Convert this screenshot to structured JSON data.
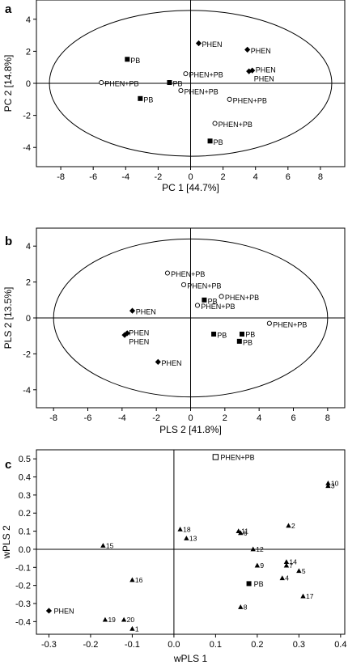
{
  "chart_data": [
    {
      "panel": "a",
      "type": "scatter",
      "xlabel": "PC 1 [44.7%]",
      "ylabel": "PC 2 [14.8%]",
      "xlim": [
        -9.5,
        9.5
      ],
      "ylim": [
        -5.2,
        5.2
      ],
      "xticks": [
        -8,
        -6,
        -4,
        -2,
        0,
        2,
        4,
        6,
        8
      ],
      "yticks": [
        -4,
        -2,
        0,
        2,
        4
      ],
      "ellipse": {
        "cx": 0,
        "cy": 0,
        "rx": 8.7,
        "ry": 4.55
      },
      "points": [
        {
          "x": 0.5,
          "y": 2.5,
          "marker": "diamond",
          "label": "PHEN"
        },
        {
          "x": 3.5,
          "y": 2.1,
          "marker": "diamond",
          "label": "PHEN"
        },
        {
          "x": 3.6,
          "y": 0.75,
          "marker": "diamond",
          "label": "PHEN"
        },
        {
          "x": 3.8,
          "y": 0.8,
          "marker": "diamond",
          "label": "PHEN"
        },
        {
          "x": -3.9,
          "y": 1.5,
          "marker": "square",
          "label": "PB"
        },
        {
          "x": -1.3,
          "y": 0.05,
          "marker": "square",
          "label": "PB"
        },
        {
          "x": -3.1,
          "y": -0.95,
          "marker": "square",
          "label": "PB"
        },
        {
          "x": 1.2,
          "y": -3.6,
          "marker": "square",
          "label": "PB"
        },
        {
          "x": -5.5,
          "y": 0.05,
          "marker": "circle",
          "label": "PHEN+PB"
        },
        {
          "x": -0.3,
          "y": 0.6,
          "marker": "circle",
          "label": "PHEN+PB"
        },
        {
          "x": -0.6,
          "y": -0.45,
          "marker": "circle",
          "label": "PHEN+PB"
        },
        {
          "x": 2.4,
          "y": -1.0,
          "marker": "circle",
          "label": "PHEN+PB"
        },
        {
          "x": 1.5,
          "y": -2.5,
          "marker": "circle",
          "label": "PHEN+PB"
        }
      ],
      "labels": [
        {
          "label": "PHEN",
          "x": 0.7,
          "y": 2.45
        },
        {
          "label": "PHEN",
          "x": 3.7,
          "y": 2.05
        },
        {
          "label": "PHEN",
          "x": 4.0,
          "y": 0.85
        },
        {
          "label": "PHEN",
          "x": 3.9,
          "y": 0.3
        },
        {
          "label": "PB",
          "x": -3.7,
          "y": 1.45
        },
        {
          "label": "PB",
          "x": -1.1,
          "y": 0.0
        },
        {
          "label": "PB",
          "x": -2.9,
          "y": -1.0
        },
        {
          "label": "PB",
          "x": 1.4,
          "y": -3.65
        },
        {
          "label": "PHEN+PB",
          "x": -5.3,
          "y": 0.0
        },
        {
          "label": "PHEN+PB",
          "x": -0.1,
          "y": 0.55
        },
        {
          "label": "PHEN+PB",
          "x": -0.4,
          "y": -0.5
        },
        {
          "label": "PHEN+PB",
          "x": 2.6,
          "y": -1.05
        },
        {
          "label": "PHEN+PB",
          "x": 1.7,
          "y": -2.55
        }
      ]
    },
    {
      "panel": "b",
      "type": "scatter",
      "xlabel": "PLS 2 [41.8%]",
      "ylabel": "PLS 2 [13.5%]",
      "xlim": [
        -9,
        9
      ],
      "ylim": [
        -5,
        5
      ],
      "xticks": [
        -8,
        -6,
        -4,
        -2,
        0,
        2,
        4,
        6,
        8
      ],
      "yticks": [
        -4,
        -2,
        0,
        2,
        4
      ],
      "ellipse": {
        "cx": 0,
        "cy": 0,
        "rx": 8.0,
        "ry": 4.4
      },
      "points": [
        {
          "x": -3.4,
          "y": 0.4,
          "marker": "diamond",
          "label": "PHEN"
        },
        {
          "x": -3.7,
          "y": -0.85,
          "marker": "diamond",
          "label": "PHEN"
        },
        {
          "x": -3.85,
          "y": -0.95,
          "marker": "diamond",
          "label": "PHEN"
        },
        {
          "x": -1.9,
          "y": -2.45,
          "marker": "diamond",
          "label": "PHEN"
        },
        {
          "x": 0.8,
          "y": 1.0,
          "marker": "square",
          "label": "PB"
        },
        {
          "x": 1.35,
          "y": -0.9,
          "marker": "square",
          "label": "PB"
        },
        {
          "x": 3.0,
          "y": -0.9,
          "marker": "square",
          "label": "PB"
        },
        {
          "x": 2.85,
          "y": -1.3,
          "marker": "square",
          "label": "PB"
        },
        {
          "x": -1.35,
          "y": 2.5,
          "marker": "circle",
          "label": "PHEN+PB"
        },
        {
          "x": -0.4,
          "y": 1.85,
          "marker": "circle",
          "label": "PHEN+PB"
        },
        {
          "x": 1.8,
          "y": 1.2,
          "marker": "circle",
          "label": "PHEN+PB"
        },
        {
          "x": 0.4,
          "y": 0.7,
          "marker": "circle",
          "label": "PHEN+PB"
        },
        {
          "x": 4.6,
          "y": -0.3,
          "marker": "circle",
          "label": "PHEN+PB"
        }
      ],
      "labels": [
        {
          "label": "PHEN",
          "x": -3.2,
          "y": 0.35
        },
        {
          "label": "PHEN",
          "x": -3.6,
          "y": -0.8
        },
        {
          "label": "PHEN",
          "x": -3.6,
          "y": -1.3
        },
        {
          "label": "PHEN",
          "x": -1.7,
          "y": -2.5
        },
        {
          "label": "PB",
          "x": 1.0,
          "y": 0.95
        },
        {
          "label": "PB",
          "x": 1.55,
          "y": -0.95
        },
        {
          "label": "PB",
          "x": 3.2,
          "y": -0.9
        },
        {
          "label": "PB",
          "x": 3.05,
          "y": -1.35
        },
        {
          "label": "PHEN+PB",
          "x": -1.15,
          "y": 2.45
        },
        {
          "label": "PHEN+PB",
          "x": -0.2,
          "y": 1.8
        },
        {
          "label": "PHEN+PB",
          "x": 2.0,
          "y": 1.15
        },
        {
          "label": "PHEN+PB",
          "x": 0.6,
          "y": 0.65
        },
        {
          "label": "PHEN+PB",
          "x": 4.8,
          "y": -0.35
        }
      ]
    },
    {
      "panel": "c",
      "type": "scatter",
      "xlabel": "wPLS 1",
      "ylabel": "wPLS 2",
      "xlim": [
        -0.33,
        0.41
      ],
      "ylim": [
        -0.47,
        0.55
      ],
      "xticks": [
        -0.3,
        -0.2,
        -0.1,
        0.0,
        0.1,
        0.2,
        0.3,
        0.4
      ],
      "xtick_labels": [
        "-0.3",
        "-0.2",
        "-0.1",
        "0.0",
        "0.1",
        "0.2",
        "0.3",
        "0.4"
      ],
      "yticks": [
        0.5,
        0.4,
        0.3,
        0.2,
        0.1,
        0.0,
        -0.1,
        -0.2,
        -0.3,
        -0.4
      ],
      "ytick_labels": [
        "0.5",
        "0.4",
        "0.3",
        "0.2",
        "0.1",
        "0.0",
        "-0.1",
        "-0.2",
        "-0.3",
        "-0.4"
      ],
      "classes": [
        {
          "label": "PHEN+PB",
          "x": 0.1,
          "y": 0.51,
          "marker": "open-square"
        },
        {
          "label": "PB",
          "x": 0.18,
          "y": -0.19,
          "marker": "square"
        },
        {
          "label": "PHEN",
          "x": -0.3,
          "y": -0.34,
          "marker": "diamond"
        }
      ],
      "variables": [
        {
          "id": "1",
          "x": -0.1,
          "y": -0.44
        },
        {
          "id": "2",
          "x": 0.275,
          "y": 0.13
        },
        {
          "id": "3",
          "x": 0.37,
          "y": 0.35
        },
        {
          "id": "4",
          "x": 0.26,
          "y": -0.16
        },
        {
          "id": "5",
          "x": 0.3,
          "y": -0.12
        },
        {
          "id": "6",
          "x": 0.16,
          "y": 0.09
        },
        {
          "id": "7",
          "x": 0.27,
          "y": -0.09
        },
        {
          "id": "8",
          "x": 0.16,
          "y": -0.32
        },
        {
          "id": "9",
          "x": 0.2,
          "y": -0.09
        },
        {
          "id": "10",
          "x": 0.37,
          "y": 0.365
        },
        {
          "id": "11",
          "x": 0.155,
          "y": 0.1
        },
        {
          "id": "12",
          "x": 0.19,
          "y": 0.0
        },
        {
          "id": "13",
          "x": 0.03,
          "y": 0.06
        },
        {
          "id": "14",
          "x": 0.27,
          "y": -0.07
        },
        {
          "id": "15",
          "x": -0.17,
          "y": 0.02
        },
        {
          "id": "16",
          "x": -0.1,
          "y": -0.17
        },
        {
          "id": "17",
          "x": 0.31,
          "y": -0.26
        },
        {
          "id": "18",
          "x": 0.015,
          "y": 0.11
        },
        {
          "id": "19",
          "x": -0.165,
          "y": -0.39
        },
        {
          "id": "20",
          "x": -0.12,
          "y": -0.39
        }
      ]
    }
  ]
}
